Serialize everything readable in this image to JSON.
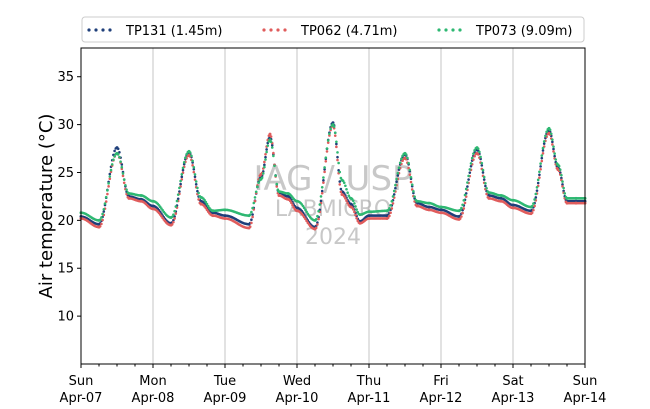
{
  "chart_data": {
    "type": "scatter",
    "title": "",
    "xlabel": "",
    "ylabel": "Air temperature (°C)",
    "xlim": [
      "2024-04-07 00:00",
      "2024-04-14 00:00"
    ],
    "ylim": [
      5,
      38
    ],
    "yticks": [
      10,
      15,
      20,
      25,
      30,
      35
    ],
    "xticks": [
      {
        "day": "Sun",
        "date": "Apr-07"
      },
      {
        "day": "Mon",
        "date": "Apr-08"
      },
      {
        "day": "Tue",
        "date": "Apr-09"
      },
      {
        "day": "Wed",
        "date": "Apr-10"
      },
      {
        "day": "Thu",
        "date": "Apr-11"
      },
      {
        "day": "Fri",
        "date": "Apr-12"
      },
      {
        "day": "Sat",
        "date": "Apr-13"
      },
      {
        "day": "Sun",
        "date": "Apr-14"
      }
    ],
    "grid": "vertical",
    "legend_position": "top",
    "watermark": [
      "IAG / USP",
      "LABMICRO",
      "2024"
    ],
    "series": [
      {
        "name": "TP131 (1.45m)",
        "color": "#1f3f7a",
        "x": [
          "2024-04-07 00:00",
          "2024-04-07 06:00",
          "2024-04-07 12:00",
          "2024-04-07 16:00",
          "2024-04-07 20:00",
          "2024-04-08 00:00",
          "2024-04-08 06:00",
          "2024-04-08 12:00",
          "2024-04-08 16:00",
          "2024-04-08 20:00",
          "2024-04-09 00:00",
          "2024-04-09 08:00",
          "2024-04-09 12:00",
          "2024-04-09 15:00",
          "2024-04-09 18:00",
          "2024-04-09 21:00",
          "2024-04-10 00:00",
          "2024-04-10 06:00",
          "2024-04-10 12:00",
          "2024-04-10 15:00",
          "2024-04-10 18:00",
          "2024-04-10 21:00",
          "2024-04-11 00:00",
          "2024-04-11 06:00",
          "2024-04-11 12:00",
          "2024-04-11 16:00",
          "2024-04-11 20:00",
          "2024-04-12 00:00",
          "2024-04-12 06:00",
          "2024-04-12 12:00",
          "2024-04-12 16:00",
          "2024-04-12 20:00",
          "2024-04-13 00:00",
          "2024-04-13 06:00",
          "2024-04-13 12:00",
          "2024-04-13 15:00",
          "2024-04-13 18:00",
          "2024-04-13 21:00",
          "2024-04-14 00:00"
        ],
        "y": [
          20.4,
          19.6,
          27.6,
          22.5,
          22.2,
          21.5,
          19.7,
          27.1,
          22.0,
          20.8,
          20.5,
          19.6,
          24.5,
          28.7,
          22.9,
          22.5,
          21.3,
          19.3,
          30.2,
          23.0,
          21.7,
          19.9,
          20.5,
          20.5,
          26.9,
          21.8,
          21.4,
          21.1,
          20.4,
          27.4,
          22.6,
          22.3,
          21.6,
          21.0,
          29.4,
          25.5,
          22.0,
          22.0,
          22.0
        ]
      },
      {
        "name": "TP062 (4.71m)",
        "color": "#e05c5c",
        "x": [
          "2024-04-07 00:00",
          "2024-04-07 06:00",
          "2024-04-07 12:00",
          "2024-04-07 16:00",
          "2024-04-07 20:00",
          "2024-04-08 00:00",
          "2024-04-08 06:00",
          "2024-04-08 12:00",
          "2024-04-08 16:00",
          "2024-04-08 20:00",
          "2024-04-09 00:00",
          "2024-04-09 08:00",
          "2024-04-09 12:00",
          "2024-04-09 15:00",
          "2024-04-09 18:00",
          "2024-04-09 21:00",
          "2024-04-10 00:00",
          "2024-04-10 06:00",
          "2024-04-10 12:00",
          "2024-04-10 15:00",
          "2024-04-10 18:00",
          "2024-04-10 21:00",
          "2024-04-11 00:00",
          "2024-04-11 06:00",
          "2024-04-11 12:00",
          "2024-04-11 16:00",
          "2024-04-11 20:00",
          "2024-04-12 00:00",
          "2024-04-12 06:00",
          "2024-04-12 12:00",
          "2024-04-12 16:00",
          "2024-04-12 20:00",
          "2024-04-13 00:00",
          "2024-04-13 06:00",
          "2024-04-13 12:00",
          "2024-04-13 15:00",
          "2024-04-13 18:00",
          "2024-04-13 21:00",
          "2024-04-14 00:00"
        ],
        "y": [
          20.2,
          19.3,
          27.0,
          22.3,
          22.0,
          21.2,
          19.5,
          26.8,
          21.7,
          20.5,
          20.2,
          19.2,
          24.8,
          29.0,
          22.6,
          22.2,
          21.0,
          19.1,
          29.9,
          22.7,
          21.4,
          19.7,
          20.2,
          20.2,
          26.5,
          21.5,
          21.1,
          20.8,
          20.1,
          27.0,
          22.3,
          22.0,
          21.3,
          20.7,
          29.1,
          25.3,
          21.8,
          21.8,
          21.8
        ]
      },
      {
        "name": "TP073 (9.09m)",
        "color": "#2eb872",
        "x": [
          "2024-04-07 00:00",
          "2024-04-07 06:00",
          "2024-04-07 12:00",
          "2024-04-07 16:00",
          "2024-04-07 20:00",
          "2024-04-08 00:00",
          "2024-04-08 06:00",
          "2024-04-08 12:00",
          "2024-04-08 16:00",
          "2024-04-08 20:00",
          "2024-04-09 00:00",
          "2024-04-09 08:00",
          "2024-04-09 12:00",
          "2024-04-09 15:00",
          "2024-04-09 18:00",
          "2024-04-09 21:00",
          "2024-04-10 00:00",
          "2024-04-10 06:00",
          "2024-04-10 12:00",
          "2024-04-10 15:00",
          "2024-04-10 18:00",
          "2024-04-10 21:00",
          "2024-04-11 00:00",
          "2024-04-11 06:00",
          "2024-04-11 12:00",
          "2024-04-11 16:00",
          "2024-04-11 20:00",
          "2024-04-12 00:00",
          "2024-04-12 06:00",
          "2024-04-12 12:00",
          "2024-04-12 16:00",
          "2024-04-12 20:00",
          "2024-04-13 00:00",
          "2024-04-13 06:00",
          "2024-04-13 12:00",
          "2024-04-13 15:00",
          "2024-04-13 18:00",
          "2024-04-13 21:00",
          "2024-04-14 00:00"
        ],
        "y": [
          20.8,
          20.0,
          27.0,
          22.8,
          22.6,
          22.0,
          20.3,
          27.2,
          22.4,
          21.0,
          21.1,
          20.5,
          24.3,
          28.4,
          23.0,
          22.8,
          22.0,
          20.0,
          30.0,
          24.2,
          22.3,
          20.6,
          20.9,
          21.0,
          27.0,
          22.0,
          21.8,
          21.4,
          21.0,
          27.6,
          22.9,
          22.6,
          22.1,
          21.4,
          29.6,
          25.8,
          22.3,
          22.3,
          22.3
        ]
      }
    ]
  }
}
